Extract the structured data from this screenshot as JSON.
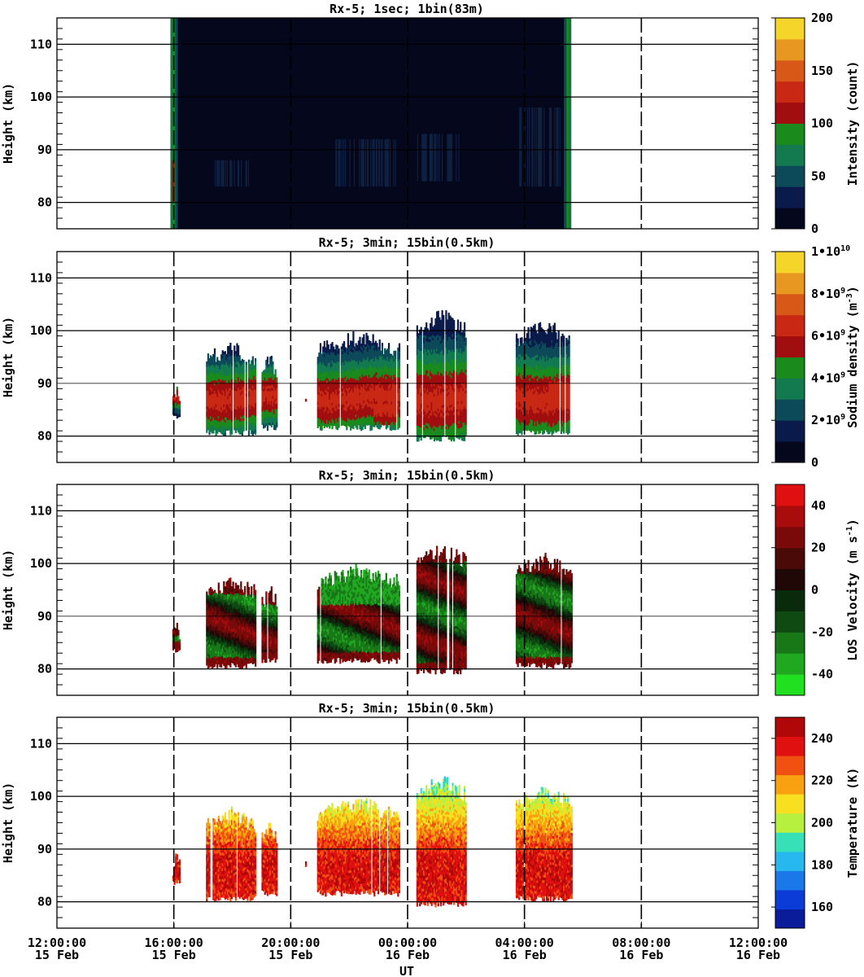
{
  "figure": {
    "x_axis_label": "UT",
    "x_ticks": [
      {
        "time": "12:00:00",
        "date": "15 Feb"
      },
      {
        "time": "16:00:00",
        "date": "15 Feb"
      },
      {
        "time": "20:00:00",
        "date": "15 Feb"
      },
      {
        "time": "00:00:00",
        "date": "16 Feb"
      },
      {
        "time": "04:00:00",
        "date": "16 Feb"
      },
      {
        "time": "08:00:00",
        "date": "16 Feb"
      },
      {
        "time": "12:00:00",
        "date": "16 Feb"
      }
    ]
  },
  "colors": {
    "intensity": [
      "#05081c",
      "#0a1a4a",
      "#0c4a5a",
      "#137a50",
      "#1a8a1c",
      "#a00e10",
      "#c82814",
      "#d85818",
      "#e89820",
      "#f5d52a"
    ],
    "sodium": [
      "#05081c",
      "#0a1a4a",
      "#0c4a5a",
      "#137a50",
      "#1a8a1c",
      "#a00e10",
      "#c82814",
      "#d85818",
      "#e89820",
      "#f5d52a"
    ],
    "velocity": [
      "#20e020",
      "#20a820",
      "#187818",
      "#0e4a12",
      "#0a2a0c",
      "#200806",
      "#4a0a08",
      "#7a0a0a",
      "#a80c0c",
      "#e01010"
    ],
    "temperature": [
      "#0a1c9a",
      "#0c3cd8",
      "#1a78e8",
      "#28b8f0",
      "#38e0b8",
      "#b8f040",
      "#f8e020",
      "#f8a010",
      "#f05010",
      "#e01010",
      "#b00808"
    ]
  },
  "chart_data": [
    {
      "type": "heatmap",
      "title": "Rx-5;  1sec; 1bin(83m)",
      "ylabel": "Height (km)",
      "xlabel": "UT",
      "x_range_hours_from_15Feb_0000": [
        12,
        36
      ],
      "ylim": [
        75,
        115
      ],
      "y_ticks": [
        80,
        90,
        100,
        110
      ],
      "colorbar": {
        "label": "Intensity (count)",
        "range": [
          0,
          200
        ],
        "ticks": [
          "0",
          "50",
          "100",
          "150",
          "200"
        ]
      },
      "data_segments": [
        {
          "start": "15 Feb 15:53",
          "end": "16 Feb 05:36",
          "note_values": "background ~5-10 counts; edges ~60-120"
        }
      ],
      "enhanced_regions": [
        {
          "start_hour": 17.4,
          "end_hour": 18.6,
          "ymin": 83,
          "ymax": 88,
          "level": 25
        },
        {
          "start_hour": 21.5,
          "end_hour": 23.6,
          "ymin": 83,
          "ymax": 92,
          "level": 30
        },
        {
          "start_hour": 24.3,
          "end_hour": 25.8,
          "ymin": 84,
          "ymax": 93,
          "level": 30
        },
        {
          "start_hour": 27.7,
          "end_hour": 29.5,
          "ymin": 83,
          "ymax": 98,
          "level": 35
        }
      ]
    },
    {
      "type": "heatmap",
      "title": "Rx-5; 3min; 15bin(0.5km)",
      "ylabel": "Height (km)",
      "xlabel": "UT",
      "x_range_hours_from_15Feb_0000": [
        12,
        36
      ],
      "ylim": [
        75,
        115
      ],
      "y_ticks": [
        80,
        90,
        100,
        110
      ],
      "colorbar": {
        "label": "Sodium density (m^-3)",
        "range": [
          0,
          10000000000.0
        ],
        "ticks": [
          "0",
          "2•10^9",
          "4•10^9",
          "6•10^9",
          "8•10^9",
          "1•10^10"
        ]
      },
      "blocks": [
        {
          "start_hour": 15.95,
          "end_hour": 16.2,
          "bottom_km": 83,
          "top_km": 90
        },
        {
          "start_hour": 17.1,
          "end_hour": 18.8,
          "bottom_km": 80,
          "top_km": 98
        },
        {
          "start_hour": 19.0,
          "end_hour": 19.5,
          "bottom_km": 81,
          "top_km": 96
        },
        {
          "start_hour": 20.4,
          "end_hour": 20.55,
          "bottom_km": 86,
          "top_km": 88
        },
        {
          "start_hour": 20.9,
          "end_hour": 23.7,
          "bottom_km": 81,
          "top_km": 100
        },
        {
          "start_hour": 24.3,
          "end_hour": 26.0,
          "bottom_km": 79,
          "top_km": 104
        },
        {
          "start_hour": 27.7,
          "end_hour": 29.6,
          "bottom_km": 80,
          "top_km": 102
        }
      ],
      "peak_density_region": {
        "height_km": [
          84,
          90
        ],
        "value_approx": 5000000000.0
      }
    },
    {
      "type": "heatmap",
      "title": "Rx-5; 3min; 15bin(0.5km)",
      "ylabel": "Height (km)",
      "xlabel": "UT",
      "x_range_hours_from_15Feb_0000": [
        12,
        36
      ],
      "ylim": [
        75,
        115
      ],
      "y_ticks": [
        80,
        90,
        100,
        110
      ],
      "colorbar": {
        "label": "LOS Velocity (m s^-1)",
        "range": [
          -50,
          50
        ],
        "ticks": [
          "-40",
          "-20",
          "0",
          "20",
          "40"
        ]
      },
      "blocks": [
        {
          "start_hour": 15.95,
          "end_hour": 16.2,
          "bottom_km": 83,
          "top_km": 90
        },
        {
          "start_hour": 17.1,
          "end_hour": 18.8,
          "bottom_km": 80,
          "top_km": 98
        },
        {
          "start_hour": 19.0,
          "end_hour": 19.5,
          "bottom_km": 81,
          "top_km": 96
        },
        {
          "start_hour": 20.4,
          "end_hour": 20.55,
          "bottom_km": 86,
          "top_km": 88
        },
        {
          "start_hour": 20.9,
          "end_hour": 23.7,
          "bottom_km": 81,
          "top_km": 100
        },
        {
          "start_hour": 24.3,
          "end_hour": 26.0,
          "bottom_km": 79,
          "top_km": 104
        },
        {
          "start_hour": 27.7,
          "end_hour": 29.6,
          "bottom_km": 80,
          "top_km": 102
        }
      ]
    },
    {
      "type": "heatmap",
      "title": "Rx-5; 3min; 15bin(0.5km)",
      "ylabel": "Height (km)",
      "xlabel": "UT",
      "x_range_hours_from_15Feb_0000": [
        12,
        36
      ],
      "ylim": [
        75,
        115
      ],
      "y_ticks": [
        80,
        90,
        100,
        110
      ],
      "colorbar": {
        "label": "Temperature (K)",
        "range": [
          150,
          250
        ],
        "ticks": [
          "160",
          "180",
          "200",
          "220",
          "240"
        ]
      },
      "blocks": [
        {
          "start_hour": 15.95,
          "end_hour": 16.2,
          "bottom_km": 83,
          "top_km": 90
        },
        {
          "start_hour": 17.1,
          "end_hour": 18.8,
          "bottom_km": 80,
          "top_km": 98
        },
        {
          "start_hour": 19.0,
          "end_hour": 19.5,
          "bottom_km": 81,
          "top_km": 96
        },
        {
          "start_hour": 20.4,
          "end_hour": 20.55,
          "bottom_km": 86,
          "top_km": 88
        },
        {
          "start_hour": 20.9,
          "end_hour": 23.7,
          "bottom_km": 81,
          "top_km": 100
        },
        {
          "start_hour": 24.3,
          "end_hour": 26.0,
          "bottom_km": 79,
          "top_km": 104
        },
        {
          "start_hour": 27.7,
          "end_hour": 29.6,
          "bottom_km": 80,
          "top_km": 102
        }
      ]
    }
  ]
}
